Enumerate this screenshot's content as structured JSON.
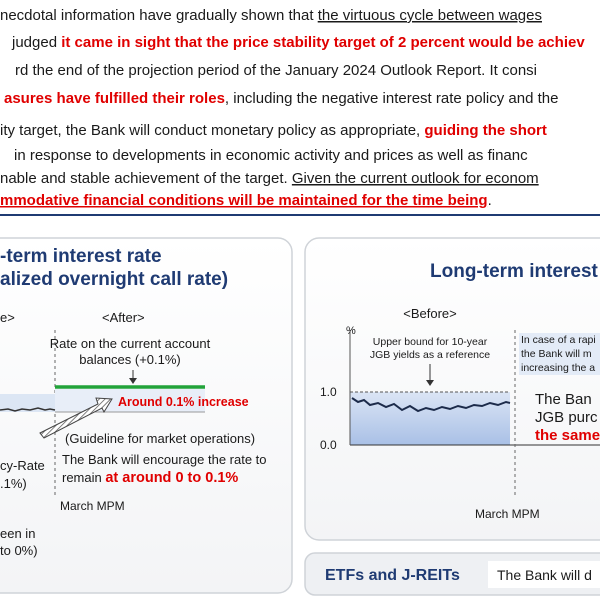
{
  "paragraph": {
    "lines": [
      [
        "necdotal information have gradually shown that ",
        "the virtuous cycle between wages"
      ],
      [
        "judged ",
        "it came in sight that the price stability target of 2 percent would be achiev"
      ],
      [
        "rd the end of the projection period of the January 2024 Outlook Report. It consi"
      ],
      [
        "asures have fulfilled their roles",
        ", including the negative interest rate policy and the"
      ],
      [
        "ity target, the Bank will conduct monetary policy as appropriate, ",
        "guiding the short"
      ],
      [
        "in response to developments in economic activity and prices as well as financ"
      ],
      [
        "nable and stable achievement of the target. ",
        "Given the current outlook for econom"
      ],
      [
        "mmodative financial conditions will be maintained for the time being",
        "."
      ]
    ]
  },
  "short_term_panel": {
    "title": [
      "-term interest rate",
      "alized overnight call rate)"
    ],
    "before_label": "e>",
    "after_label": "<After>",
    "current_account_rate": [
      "Rate on the current account",
      "balances (+0.1%)"
    ],
    "increase_label": "Around 0.1% increase",
    "guideline": "(Guideline for market operations)",
    "encourage": [
      "The Bank will encourage the rate to",
      "remain ",
      "at around 0 to 0.1%"
    ],
    "policy_rate": [
      "cy-Rate",
      ".1%)"
    ],
    "march_mpm": "March MPM",
    "between": [
      "een in",
      "to 0%)"
    ]
  },
  "long_term_panel": {
    "title": "Long-term interest",
    "unit": "%",
    "before_label": "<Before>",
    "upper_bound": [
      "Upper bound for 10-year",
      "JGB yields as a reference"
    ],
    "axis_labels": [
      "1.0",
      "0.0"
    ],
    "rapid_case": [
      "In case of a rapi",
      "the Bank will m",
      "increasing the a"
    ],
    "purchases": [
      "The Ban",
      "JGB purc",
      "the same"
    ],
    "march_mpm": "March MPM"
  },
  "etf_panel": {
    "title": "ETFs and J-REITs",
    "text": "The Bank will d"
  }
}
